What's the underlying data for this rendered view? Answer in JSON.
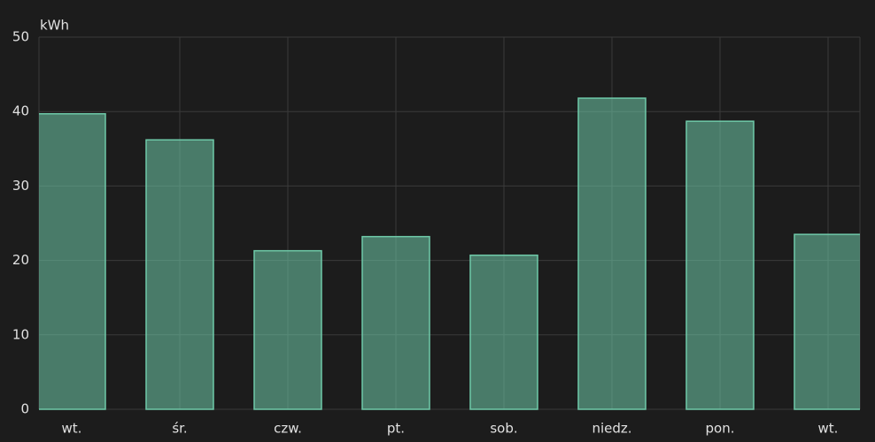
{
  "chart_data": {
    "type": "bar",
    "y_label": "kWh",
    "categories": [
      "wt.",
      "śr.",
      "czw.",
      "pt.",
      "sob.",
      "niedz.",
      "pon.",
      "wt."
    ],
    "values": [
      39.7,
      36.2,
      21.3,
      23.2,
      20.7,
      41.8,
      38.7,
      23.5
    ],
    "color": "#6fcaa9",
    "ylim": [
      0,
      50
    ],
    "yticks": [
      0,
      10,
      20,
      30,
      40,
      50
    ],
    "grid": true
  }
}
